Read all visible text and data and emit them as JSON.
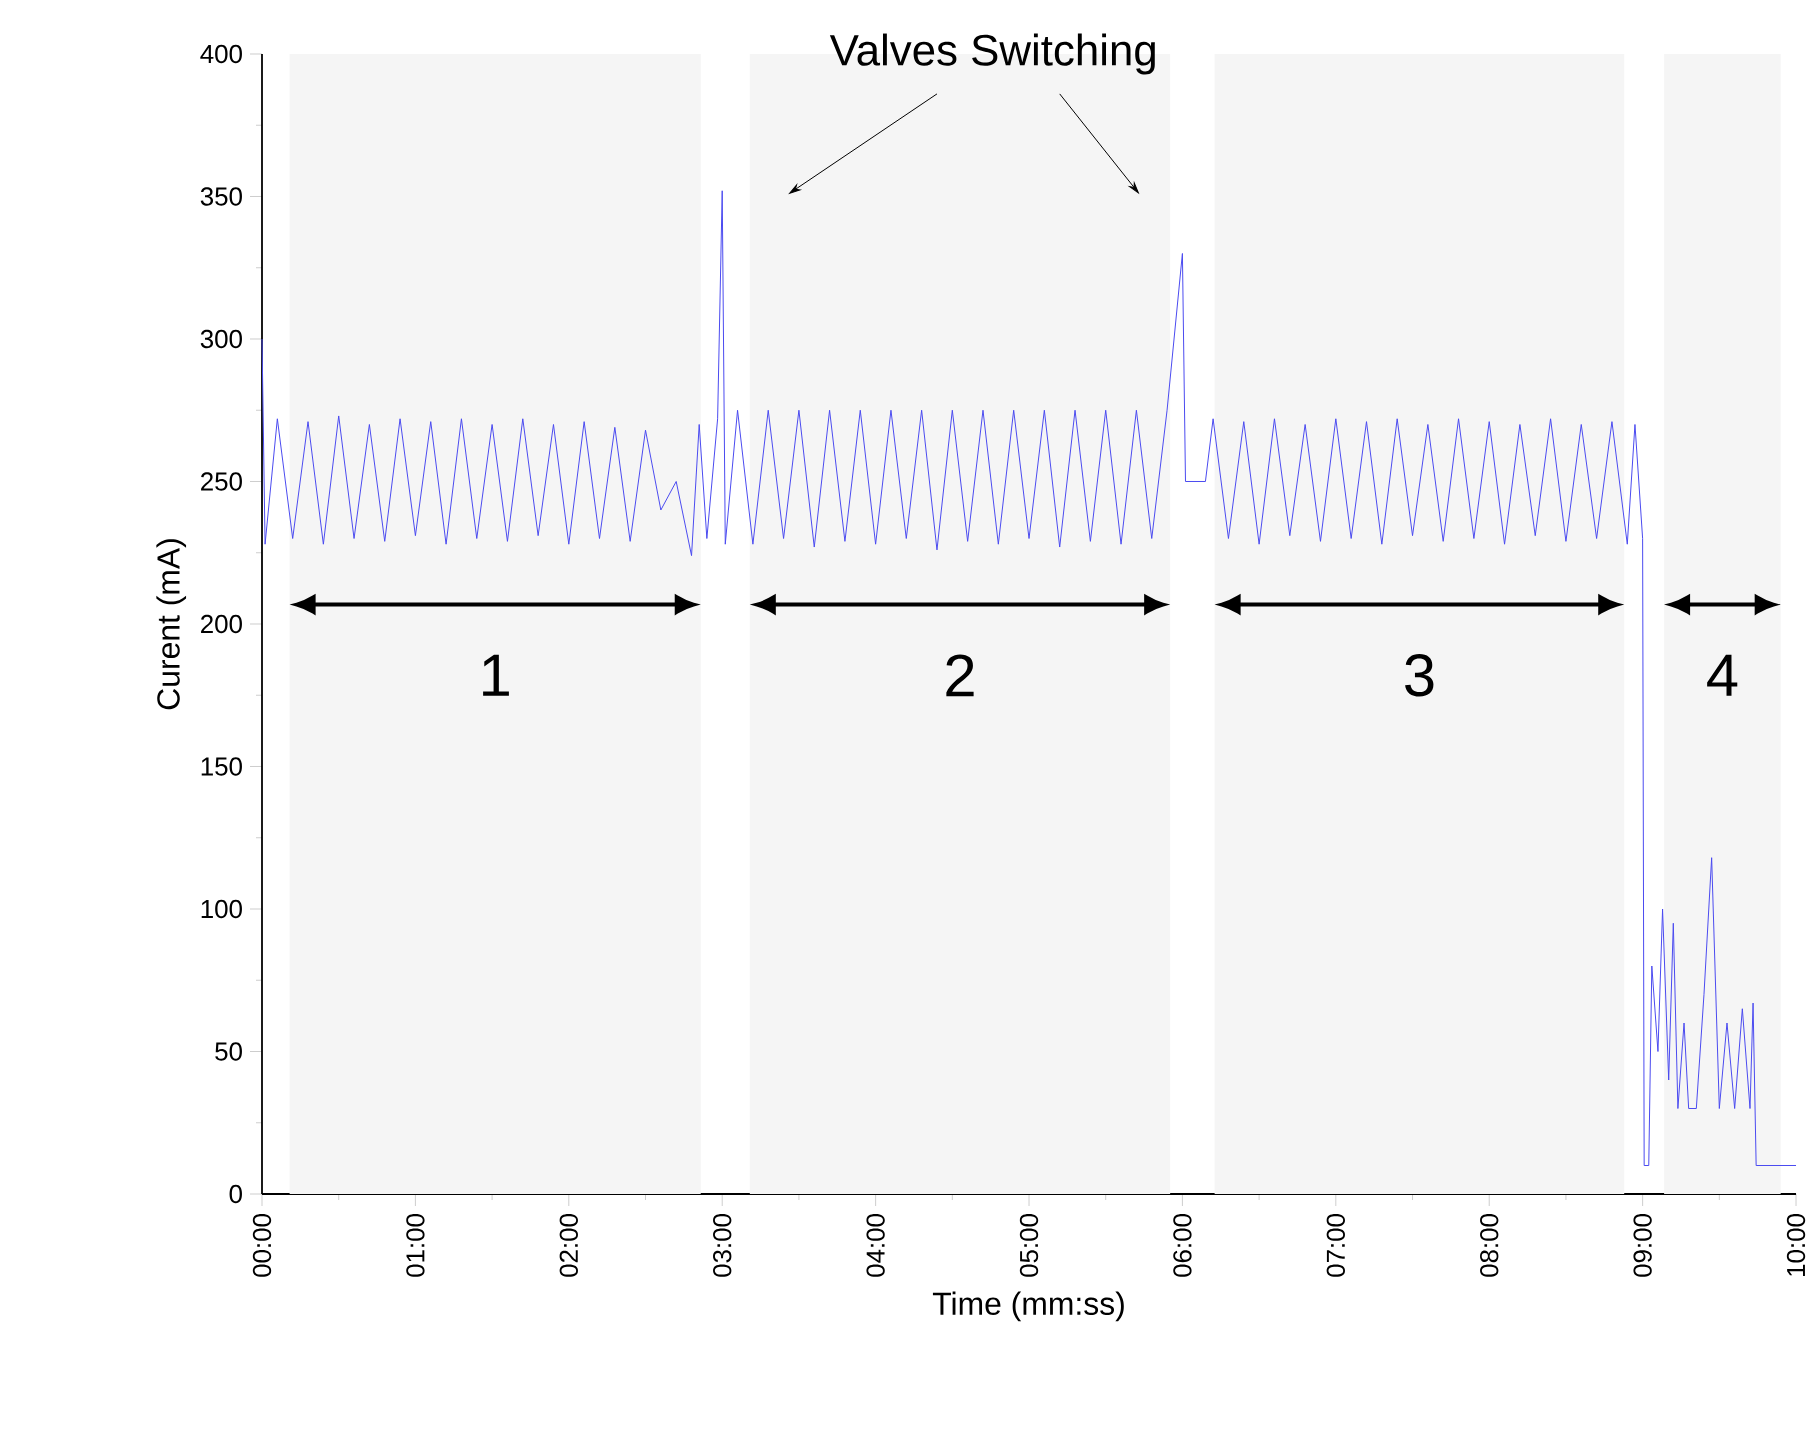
{
  "chart_data": {
    "type": "line",
    "xlabel": "Time (mm:ss)",
    "ylabel": "Curent (mA)",
    "annotations": [
      "Valves Switching"
    ],
    "xlim": [
      0,
      10
    ],
    "ylim": [
      0,
      400
    ],
    "xticks": [
      {
        "value": 0,
        "label": "00:00"
      },
      {
        "value": 1,
        "label": "01:00"
      },
      {
        "value": 2,
        "label": "02:00"
      },
      {
        "value": 3,
        "label": "03:00"
      },
      {
        "value": 4,
        "label": "04:00"
      },
      {
        "value": 5,
        "label": "05:00"
      },
      {
        "value": 6,
        "label": "06:00"
      },
      {
        "value": 7,
        "label": "07:00"
      },
      {
        "value": 8,
        "label": "08:00"
      },
      {
        "value": 9,
        "label": "09:00"
      },
      {
        "value": 10,
        "label": "10:00"
      }
    ],
    "yticks": [
      0,
      50,
      100,
      150,
      200,
      250,
      300,
      350,
      400
    ],
    "bands": [
      {
        "axis": "x",
        "from": 0.18,
        "to": 2.86,
        "label": "1"
      },
      {
        "axis": "x",
        "from": 3.18,
        "to": 5.92,
        "label": "2"
      },
      {
        "axis": "x",
        "from": 6.21,
        "to": 8.88,
        "label": "3"
      },
      {
        "axis": "x",
        "from": 9.14,
        "to": 9.9,
        "label": "4"
      }
    ],
    "series": [
      {
        "color": "#4a4af0",
        "x": [
          0,
          0.02,
          0.1,
          0.2,
          0.3,
          0.4,
          0.5,
          0.6,
          0.7,
          0.8,
          0.9,
          1.0,
          1.1,
          1.2,
          1.3,
          1.4,
          1.5,
          1.6,
          1.7,
          1.8,
          1.9,
          2.0,
          2.1,
          2.2,
          2.3,
          2.4,
          2.5,
          2.6,
          2.7,
          2.8,
          2.85,
          2.9,
          2.97,
          3.0,
          3.02,
          3.1,
          3.2,
          3.3,
          3.4,
          3.5,
          3.6,
          3.7,
          3.8,
          3.9,
          4.0,
          4.1,
          4.2,
          4.3,
          4.4,
          4.5,
          4.6,
          4.7,
          4.8,
          4.9,
          5.0,
          5.1,
          5.2,
          5.3,
          5.4,
          5.5,
          5.6,
          5.7,
          5.8,
          5.9,
          6.0,
          6.02,
          6.15,
          6.2,
          6.3,
          6.4,
          6.5,
          6.6,
          6.7,
          6.8,
          6.9,
          7.0,
          7.1,
          7.2,
          7.3,
          7.4,
          7.5,
          7.6,
          7.7,
          7.8,
          7.9,
          8.0,
          8.1,
          8.2,
          8.3,
          8.4,
          8.5,
          8.6,
          8.7,
          8.8,
          8.9,
          8.95,
          9.0,
          9.01,
          9.04,
          9.06,
          9.1,
          9.13,
          9.17,
          9.2,
          9.23,
          9.27,
          9.3,
          9.35,
          9.4,
          9.45,
          9.5,
          9.55,
          9.6,
          9.65,
          9.7,
          9.72,
          9.74,
          10
        ],
        "values": [
          300,
          228,
          272,
          230,
          271,
          228,
          273,
          230,
          270,
          229,
          272,
          231,
          271,
          228,
          272,
          230,
          270,
          229,
          272,
          231,
          270,
          228,
          271,
          230,
          269,
          229,
          268,
          240,
          250,
          224,
          270,
          230,
          272,
          352,
          228,
          275,
          228,
          275,
          230,
          275,
          227,
          275,
          229,
          275,
          228,
          275,
          230,
          275,
          226,
          275,
          229,
          275,
          228,
          275,
          230,
          275,
          227,
          275,
          229,
          275,
          228,
          275,
          230,
          275,
          330,
          250,
          250,
          272,
          230,
          271,
          228,
          272,
          231,
          270,
          229,
          272,
          230,
          271,
          228,
          272,
          231,
          270,
          229,
          272,
          230,
          271,
          228,
          270,
          231,
          272,
          229,
          270,
          230,
          271,
          228,
          270,
          230,
          10,
          10,
          80,
          50,
          100,
          40,
          95,
          30,
          60,
          30,
          30,
          70,
          118,
          30,
          60,
          30,
          65,
          30,
          67,
          10,
          10
        ]
      }
    ]
  }
}
